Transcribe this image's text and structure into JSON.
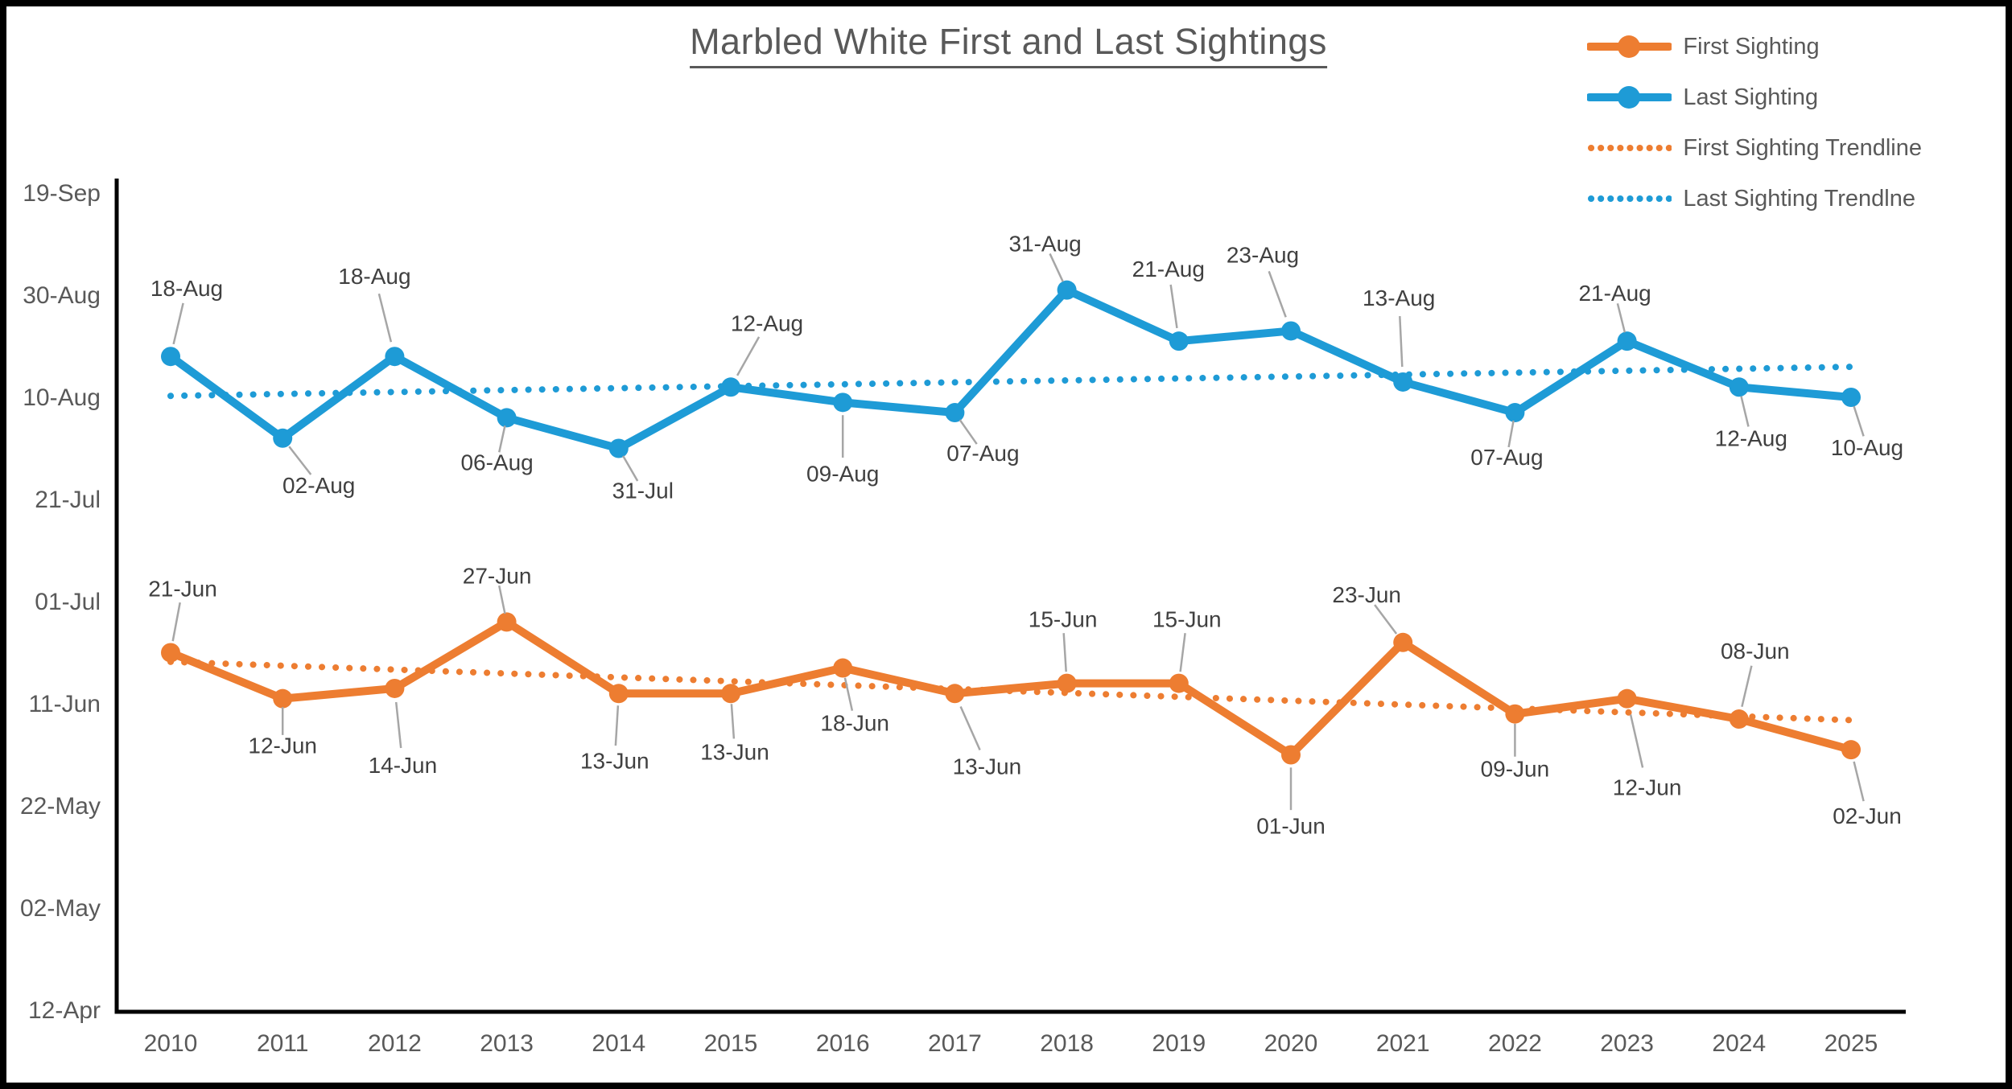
{
  "title": {
    "text": "Marbled White First and Last Sightings"
  },
  "colors": {
    "first_sighting": "#ED7D31",
    "last_sighting": "#1E9BD6",
    "axis_line": "#000000",
    "tick_label": "#595959",
    "data_label": "#404040",
    "leader_line": "#A6A6A6",
    "frame": "#000000"
  },
  "legend": {
    "entries": [
      {
        "label": "First Sighting",
        "style": "line-marker",
        "color": "#ED7D31"
      },
      {
        "label": "Last Sighting",
        "style": "line-marker",
        "color": "#1E9BD6"
      },
      {
        "label": "First Sighting Trendline",
        "style": "dotted",
        "color": "#ED7D31"
      },
      {
        "label": "Last Sighting Trendlne",
        "style": "dotted",
        "color": "#1E9BD6"
      }
    ]
  },
  "chart_data": {
    "type": "line",
    "title": "Marbled White First and Last Sightings",
    "categories": [
      "2010",
      "2011",
      "2012",
      "2013",
      "2014",
      "2015",
      "2016",
      "2017",
      "2018",
      "2019",
      "2020",
      "2021",
      "2022",
      "2023",
      "2024",
      "2025"
    ],
    "x_axis": {
      "label": "",
      "tick_labels": [
        "2010",
        "2011",
        "2012",
        "2013",
        "2014",
        "2015",
        "2016",
        "2017",
        "2018",
        "2019",
        "2020",
        "2021",
        "2022",
        "2023",
        "2024",
        "2025"
      ]
    },
    "y_axis": {
      "label": "",
      "tick_labels": [
        "19-Sep",
        "30-Aug",
        "10-Aug",
        "21-Jul",
        "01-Jul",
        "11-Jun",
        "22-May",
        "02-May",
        "12-Apr"
      ],
      "interval_days": 20,
      "gridlines": false
    },
    "series": [
      {
        "name": "First Sighting",
        "color": "#ED7D31",
        "values": [
          "21-Jun",
          "12-Jun",
          "14-Jun",
          "27-Jun",
          "13-Jun",
          "13-Jun",
          "18-Jun",
          "13-Jun",
          "15-Jun",
          "15-Jun",
          "01-Jun",
          "23-Jun",
          "09-Jun",
          "12-Jun",
          "08-Jun",
          "02-Jun"
        ],
        "label_offsets": [
          [
            15,
            -80
          ],
          [
            0,
            58
          ],
          [
            10,
            95
          ],
          [
            -12,
            -58
          ],
          [
            -5,
            83
          ],
          [
            5,
            72
          ],
          [
            15,
            68
          ],
          [
            40,
            90
          ],
          [
            -5,
            -80
          ],
          [
            10,
            -80
          ],
          [
            0,
            88
          ],
          [
            -45,
            -60
          ],
          [
            0,
            68
          ],
          [
            25,
            110
          ],
          [
            20,
            -85
          ],
          [
            20,
            82
          ]
        ]
      },
      {
        "name": "Last Sighting",
        "color": "#1E9BD6",
        "values": [
          "18-Aug",
          "02-Aug",
          "18-Aug",
          "06-Aug",
          "31-Jul",
          "12-Aug",
          "09-Aug",
          "07-Aug",
          "31-Aug",
          "21-Aug",
          "23-Aug",
          "13-Aug",
          "07-Aug",
          "21-Aug",
          "12-Aug",
          "10-Aug"
        ],
        "label_offsets": [
          [
            20,
            -85
          ],
          [
            45,
            58
          ],
          [
            -25,
            -100
          ],
          [
            -12,
            55
          ],
          [
            30,
            52
          ],
          [
            45,
            -80
          ],
          [
            0,
            88
          ],
          [
            35,
            50
          ],
          [
            -27,
            -58
          ],
          [
            -13,
            -90
          ],
          [
            -35,
            -95
          ],
          [
            -5,
            -105
          ],
          [
            -10,
            55
          ],
          [
            -15,
            -60
          ],
          [
            15,
            63
          ],
          [
            20,
            62
          ]
        ]
      }
    ],
    "trendlines": [
      {
        "name": "First Sighting Trendline",
        "series": "First Sighting",
        "color": "#ED7D31",
        "fit": "linear"
      },
      {
        "name": "Last Sighting Trendlne",
        "series": "Last Sighting",
        "color": "#1E9BD6",
        "fit": "linear"
      }
    ],
    "legend_position": "top-right"
  }
}
